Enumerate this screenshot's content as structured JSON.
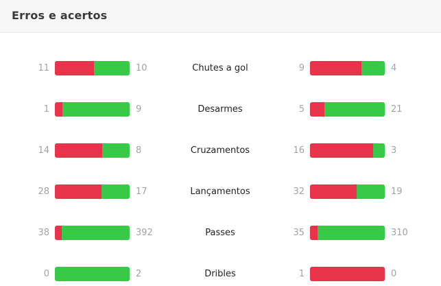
{
  "header": {
    "title": "Erros e acertos"
  },
  "colors": {
    "error": "#e8344a",
    "success": "#38c948",
    "number": "#a3a3a3"
  },
  "stats": [
    {
      "label": "Chutes a gol",
      "left": {
        "errors": 11,
        "hits": 10
      },
      "right": {
        "errors": 9,
        "hits": 4
      }
    },
    {
      "label": "Desarmes",
      "left": {
        "errors": 1,
        "hits": 9
      },
      "right": {
        "errors": 5,
        "hits": 21
      }
    },
    {
      "label": "Cruzamentos",
      "left": {
        "errors": 14,
        "hits": 8
      },
      "right": {
        "errors": 16,
        "hits": 3
      }
    },
    {
      "label": "Lançamentos",
      "left": {
        "errors": 28,
        "hits": 17
      },
      "right": {
        "errors": 32,
        "hits": 19
      }
    },
    {
      "label": "Passes",
      "left": {
        "errors": 38,
        "hits": 392
      },
      "right": {
        "errors": 35,
        "hits": 310
      }
    },
    {
      "label": "Dribles",
      "left": {
        "errors": 0,
        "hits": 2
      },
      "right": {
        "errors": 1,
        "hits": 0
      }
    }
  ]
}
